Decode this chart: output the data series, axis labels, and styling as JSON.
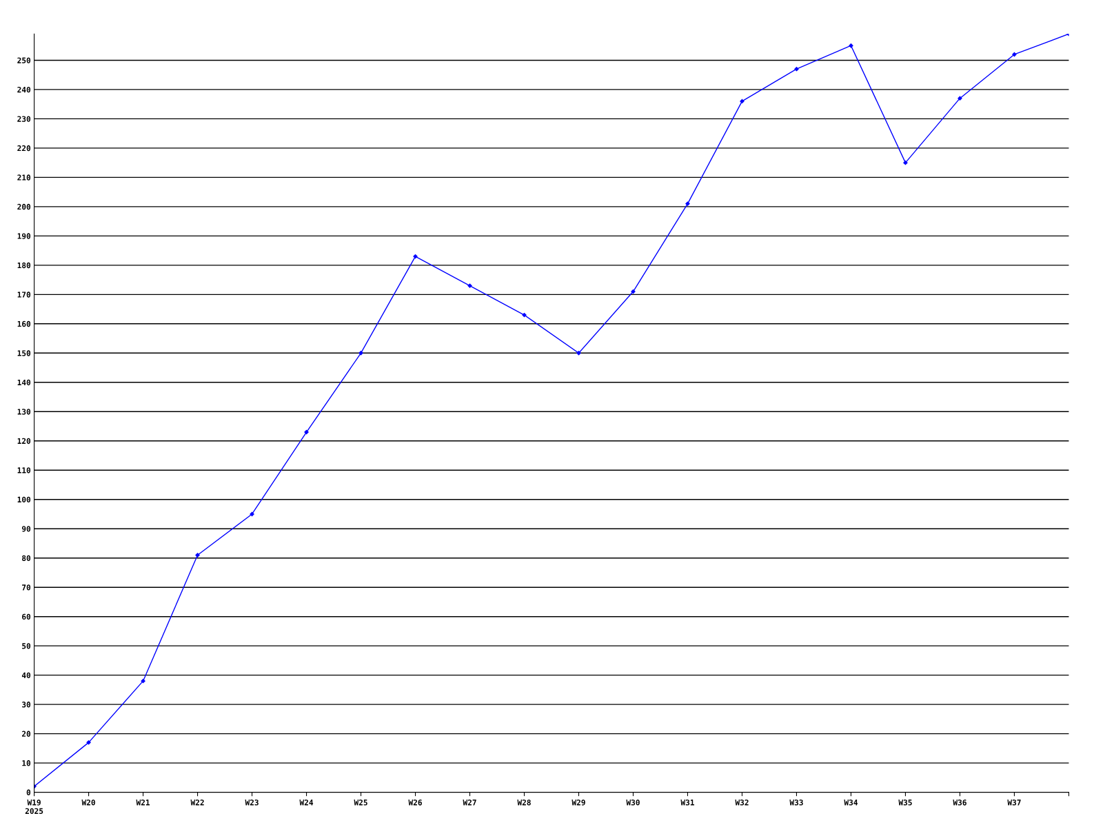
{
  "chart_data": {
    "type": "line",
    "categories": [
      "W19\n2025",
      "W20",
      "W21",
      "W22",
      "W23",
      "W24",
      "W25",
      "W26",
      "W27",
      "W28",
      "W29",
      "W30",
      "W31",
      "W32",
      "W33",
      "W34",
      "W35",
      "W36",
      "W37",
      null
    ],
    "series": [
      {
        "color": "#0000ff",
        "values": [
          2,
          17,
          38,
          81,
          95,
          123,
          150,
          183,
          173,
          163,
          150,
          171,
          201,
          236,
          247,
          255,
          215,
          237,
          252,
          259
        ]
      }
    ],
    "ylim": [
      0,
      259
    ],
    "yticks": [
      0,
      10,
      20,
      30,
      40,
      50,
      60,
      70,
      80,
      90,
      100,
      110,
      120,
      130,
      140,
      150,
      160,
      170,
      180,
      190,
      200,
      210,
      220,
      230,
      240,
      250
    ],
    "grid": "y",
    "marker": "diamond",
    "line_style": "solid"
  }
}
